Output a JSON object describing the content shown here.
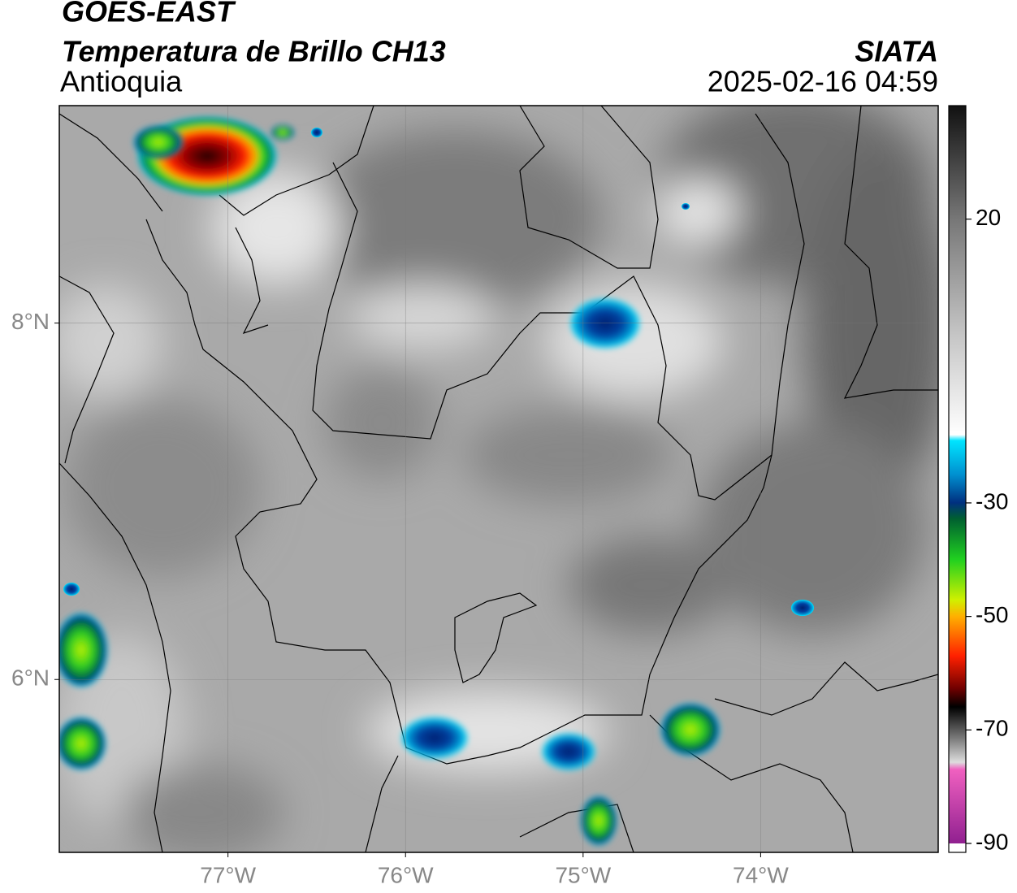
{
  "header": {
    "title": "GOES-EAST",
    "subtitle": "Temperatura de Brillo CH13",
    "region": "Antioquia",
    "source": "SIATA",
    "datetime": "2025-02-16 04:59"
  },
  "map": {
    "xlim": [
      -77.95,
      -73.0
    ],
    "ylim": [
      5.03,
      9.22
    ],
    "xticks": [
      {
        "value": -77,
        "label": "77°W"
      },
      {
        "value": -76,
        "label": "76°W"
      },
      {
        "value": -75,
        "label": "75°W"
      },
      {
        "value": -74,
        "label": "74°W"
      }
    ],
    "yticks": [
      {
        "value": 6,
        "label": "6°N"
      },
      {
        "value": 8,
        "label": "8°N"
      }
    ],
    "grid": true
  },
  "colorbar": {
    "clim": [
      -90,
      40
    ],
    "ticks": [
      20,
      -30,
      -50,
      -70,
      -90
    ]
  }
}
